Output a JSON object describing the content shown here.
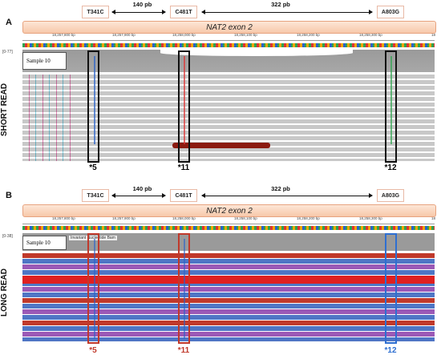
{
  "panels": [
    {
      "letter": "A",
      "side_label": "SHORT READ",
      "sample": "Sample 10",
      "coverage_label": "[0-77]",
      "allele_color": "#111111"
    },
    {
      "letter": "B",
      "side_label": "LONG READ",
      "sample": "Sample 10",
      "coverage_label": "[0-38]",
      "coverage_note": "Invariant Nucleotide Bam",
      "allele_color_left": "#c0392b",
      "allele_color_mid": "#c0392b",
      "allele_color_right": "#2e6fd1"
    }
  ],
  "variants": [
    "T341C",
    "C481T",
    "A803G"
  ],
  "distances": [
    "140 pb",
    "322 pb"
  ],
  "exon_label": "NAT2 exon 2",
  "ruler_ticks": [
    "18,257,800 bp",
    "18,257,900 bp",
    "18,258,000 bp",
    "18,258,100 bp",
    "18,258,200 bp",
    "18,258,300 bp",
    "18"
  ],
  "alleles": [
    "*5",
    "*11",
    "*12"
  ],
  "colors": {
    "exon_fill": "#f7c8aa",
    "sr_read": "#c8c8c8",
    "lr_blue": "#4f76c5",
    "lr_red": "#c0392b",
    "lr_purple": "#9b59b6",
    "highlight_red": "#8b1a10"
  }
}
